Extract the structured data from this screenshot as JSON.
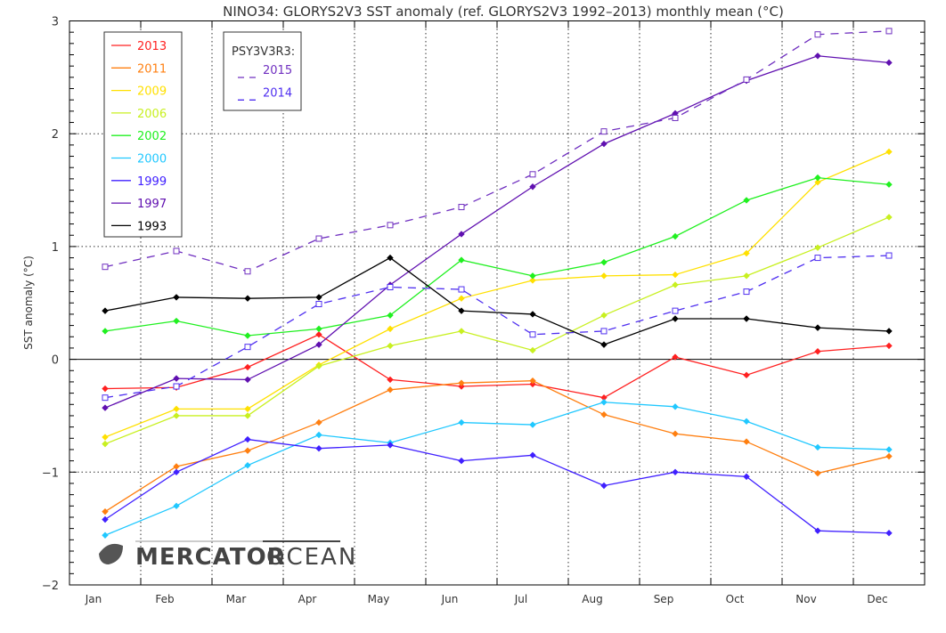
{
  "chart_data": {
    "type": "line",
    "title": "NINO34: GLORYS2V3 SST anomaly (ref. GLORYS2V3 1992–2013) monthly mean (°C)",
    "xlabel": "",
    "ylabel": "SST anomaly (°C)",
    "ylim": [
      -2,
      3
    ],
    "yticks": [
      "-2",
      "-1",
      "0",
      "1",
      "2",
      "3"
    ],
    "categories": [
      "Jan",
      "Feb",
      "Mar",
      "Apr",
      "May",
      "Jun",
      "Jul",
      "Aug",
      "Sep",
      "Oct",
      "Nov",
      "Dec"
    ],
    "grid": true,
    "legend_title_2": "PSY3V3R3:",
    "series": [
      {
        "name": "2013",
        "color": "#ff2020",
        "style": "solid",
        "group": 1,
        "values": [
          -0.26,
          -0.25,
          -0.07,
          0.22,
          -0.18,
          -0.24,
          -0.22,
          -0.34,
          0.02,
          -0.14,
          0.07,
          0.12
        ]
      },
      {
        "name": "2011",
        "color": "#ff7f10",
        "style": "solid",
        "group": 1,
        "values": [
          -1.35,
          -0.95,
          -0.81,
          -0.56,
          -0.27,
          -0.21,
          -0.19,
          -0.49,
          -0.66,
          -0.73,
          -1.01,
          -0.86
        ]
      },
      {
        "name": "2009",
        "color": "#ffe000",
        "style": "solid",
        "group": 1,
        "values": [
          -0.69,
          -0.44,
          -0.44,
          -0.05,
          0.27,
          0.54,
          0.7,
          0.74,
          0.75,
          0.94,
          1.57,
          1.84
        ]
      },
      {
        "name": "2006",
        "color": "#c8f020",
        "style": "solid",
        "group": 1,
        "values": [
          -0.75,
          -0.5,
          -0.5,
          -0.06,
          0.12,
          0.25,
          0.08,
          0.39,
          0.66,
          0.74,
          0.99,
          1.26
        ]
      },
      {
        "name": "2002",
        "color": "#20f020",
        "style": "solid",
        "group": 1,
        "values": [
          0.25,
          0.34,
          0.21,
          0.27,
          0.39,
          0.88,
          0.74,
          0.86,
          1.09,
          1.41,
          1.61,
          1.55
        ]
      },
      {
        "name": "2000",
        "color": "#20c8ff",
        "style": "solid",
        "group": 1,
        "values": [
          -1.56,
          -1.3,
          -0.94,
          -0.67,
          -0.74,
          -0.56,
          -0.58,
          -0.38,
          -0.42,
          -0.55,
          -0.78,
          -0.8
        ]
      },
      {
        "name": "1999",
        "color": "#4020ff",
        "style": "solid",
        "group": 1,
        "values": [
          -1.42,
          -1.0,
          -0.71,
          -0.79,
          -0.76,
          -0.9,
          -0.85,
          -1.12,
          -1.0,
          -1.04,
          -1.52,
          -1.54
        ]
      },
      {
        "name": "1997",
        "color": "#6010b0",
        "style": "solid",
        "group": 1,
        "values": [
          -0.43,
          -0.17,
          -0.18,
          0.13,
          0.66,
          1.11,
          1.53,
          1.91,
          2.18,
          2.47,
          2.69,
          2.63
        ]
      },
      {
        "name": "1993",
        "color": "#000000",
        "style": "solid",
        "group": 1,
        "values": [
          0.43,
          0.55,
          0.54,
          0.55,
          0.9,
          0.43,
          0.4,
          0.13,
          0.36,
          0.36,
          0.28,
          0.25
        ]
      },
      {
        "name": "2015",
        "color": "#7030c0",
        "style": "dashed",
        "group": 2,
        "values": [
          0.82,
          0.96,
          0.78,
          1.07,
          1.19,
          1.35,
          1.64,
          2.02,
          2.14,
          2.48,
          2.88,
          2.91
        ]
      },
      {
        "name": "2014",
        "color": "#5030f0",
        "style": "dashed",
        "group": 2,
        "values": [
          -0.34,
          -0.24,
          0.11,
          0.49,
          0.64,
          0.62,
          0.22,
          0.25,
          0.43,
          0.6,
          0.9,
          0.92
        ]
      }
    ]
  },
  "logo": {
    "text_bold": "MERCATOR",
    "text_light": "OCEAN"
  }
}
